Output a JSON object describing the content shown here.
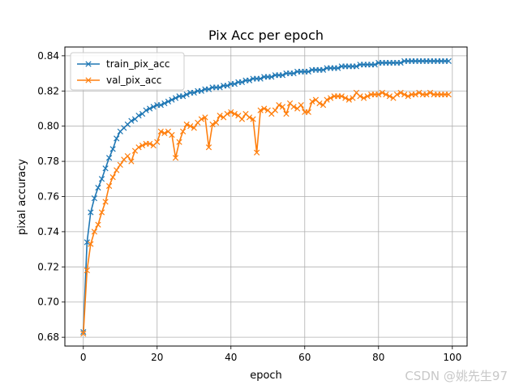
{
  "chart_data": {
    "type": "line",
    "title": "Pix Acc per epoch",
    "xlabel": "epoch",
    "ylabel": "pixal accuracy",
    "xlim": [
      -5,
      104
    ],
    "ylim": [
      0.675,
      0.845
    ],
    "xticks": [
      0,
      20,
      40,
      60,
      80,
      100
    ],
    "yticks": [
      0.68,
      0.7,
      0.72,
      0.74,
      0.76,
      0.78,
      0.8,
      0.82,
      0.84
    ],
    "grid": true,
    "legend": "top-left",
    "marker": "x",
    "series": [
      {
        "name": "train_pix_acc",
        "color": "#1f77b4",
        "values": [
          0.683,
          0.734,
          0.751,
          0.759,
          0.765,
          0.77,
          0.776,
          0.782,
          0.787,
          0.793,
          0.797,
          0.799,
          0.801,
          0.803,
          0.804,
          0.806,
          0.807,
          0.809,
          0.81,
          0.811,
          0.812,
          0.812,
          0.813,
          0.814,
          0.815,
          0.816,
          0.817,
          0.817,
          0.818,
          0.819,
          0.819,
          0.82,
          0.82,
          0.821,
          0.821,
          0.822,
          0.822,
          0.822,
          0.823,
          0.823,
          0.824,
          0.824,
          0.825,
          0.825,
          0.826,
          0.826,
          0.827,
          0.827,
          0.827,
          0.828,
          0.828,
          0.828,
          0.829,
          0.829,
          0.829,
          0.83,
          0.83,
          0.83,
          0.831,
          0.831,
          0.831,
          0.831,
          0.832,
          0.832,
          0.832,
          0.832,
          0.833,
          0.833,
          0.833,
          0.833,
          0.834,
          0.834,
          0.834,
          0.834,
          0.834,
          0.835,
          0.835,
          0.835,
          0.835,
          0.835,
          0.836,
          0.836,
          0.836,
          0.836,
          0.836,
          0.836,
          0.836,
          0.837,
          0.837,
          0.837,
          0.837,
          0.837,
          0.837,
          0.837,
          0.837,
          0.837,
          0.837,
          0.837,
          0.837,
          0.837
        ]
      },
      {
        "name": "val_pix_acc",
        "color": "#ff7f0e",
        "values": [
          0.682,
          0.718,
          0.733,
          0.74,
          0.744,
          0.751,
          0.757,
          0.766,
          0.771,
          0.775,
          0.778,
          0.781,
          0.783,
          0.78,
          0.786,
          0.788,
          0.789,
          0.79,
          0.79,
          0.789,
          0.791,
          0.797,
          0.796,
          0.797,
          0.795,
          0.782,
          0.791,
          0.797,
          0.801,
          0.8,
          0.799,
          0.802,
          0.804,
          0.805,
          0.788,
          0.801,
          0.802,
          0.806,
          0.805,
          0.807,
          0.808,
          0.807,
          0.806,
          0.804,
          0.807,
          0.805,
          0.804,
          0.785,
          0.809,
          0.81,
          0.809,
          0.807,
          0.809,
          0.812,
          0.811,
          0.807,
          0.813,
          0.811,
          0.81,
          0.812,
          0.808,
          0.808,
          0.814,
          0.815,
          0.813,
          0.812,
          0.815,
          0.816,
          0.817,
          0.817,
          0.817,
          0.816,
          0.815,
          0.816,
          0.819,
          0.817,
          0.816,
          0.817,
          0.818,
          0.818,
          0.818,
          0.819,
          0.818,
          0.817,
          0.816,
          0.818,
          0.819,
          0.818,
          0.817,
          0.818,
          0.818,
          0.819,
          0.818,
          0.818,
          0.819,
          0.818,
          0.818,
          0.818,
          0.818,
          0.818
        ]
      }
    ]
  },
  "watermark": "CSDN @姚先生97"
}
